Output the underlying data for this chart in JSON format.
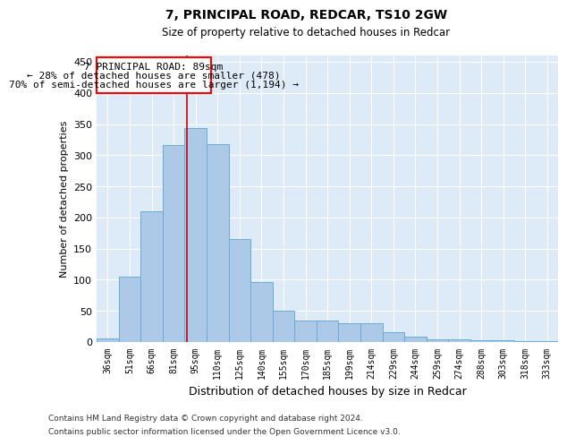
{
  "title": "7, PRINCIPAL ROAD, REDCAR, TS10 2GW",
  "subtitle": "Size of property relative to detached houses in Redcar",
  "xlabel": "Distribution of detached houses by size in Redcar",
  "ylabel": "Number of detached properties",
  "bar_color": "#adc9e8",
  "bar_edge_color": "#6aaad4",
  "background_color": "#ddeaf7",
  "categories": [
    "36sqm",
    "51sqm",
    "66sqm",
    "81sqm",
    "95sqm",
    "110sqm",
    "125sqm",
    "140sqm",
    "155sqm",
    "170sqm",
    "185sqm",
    "199sqm",
    "214sqm",
    "229sqm",
    "244sqm",
    "259sqm",
    "274sqm",
    "288sqm",
    "303sqm",
    "318sqm",
    "333sqm"
  ],
  "values": [
    6,
    105,
    210,
    316,
    343,
    318,
    165,
    97,
    50,
    35,
    35,
    30,
    30,
    16,
    9,
    5,
    5,
    3,
    3,
    2,
    2
  ],
  "ylim": [
    0,
    460
  ],
  "yticks": [
    0,
    50,
    100,
    150,
    200,
    250,
    300,
    350,
    400,
    450
  ],
  "annotation_text_line1": "7 PRINCIPAL ROAD: 89sqm",
  "annotation_text_line2": "← 28% of detached houses are smaller (478)",
  "annotation_text_line3": "70% of semi-detached houses are larger (1,194) →",
  "vline_x": 3.62,
  "footer_line1": "Contains HM Land Registry data © Crown copyright and database right 2024.",
  "footer_line2": "Contains public sector information licensed under the Open Government Licence v3.0."
}
